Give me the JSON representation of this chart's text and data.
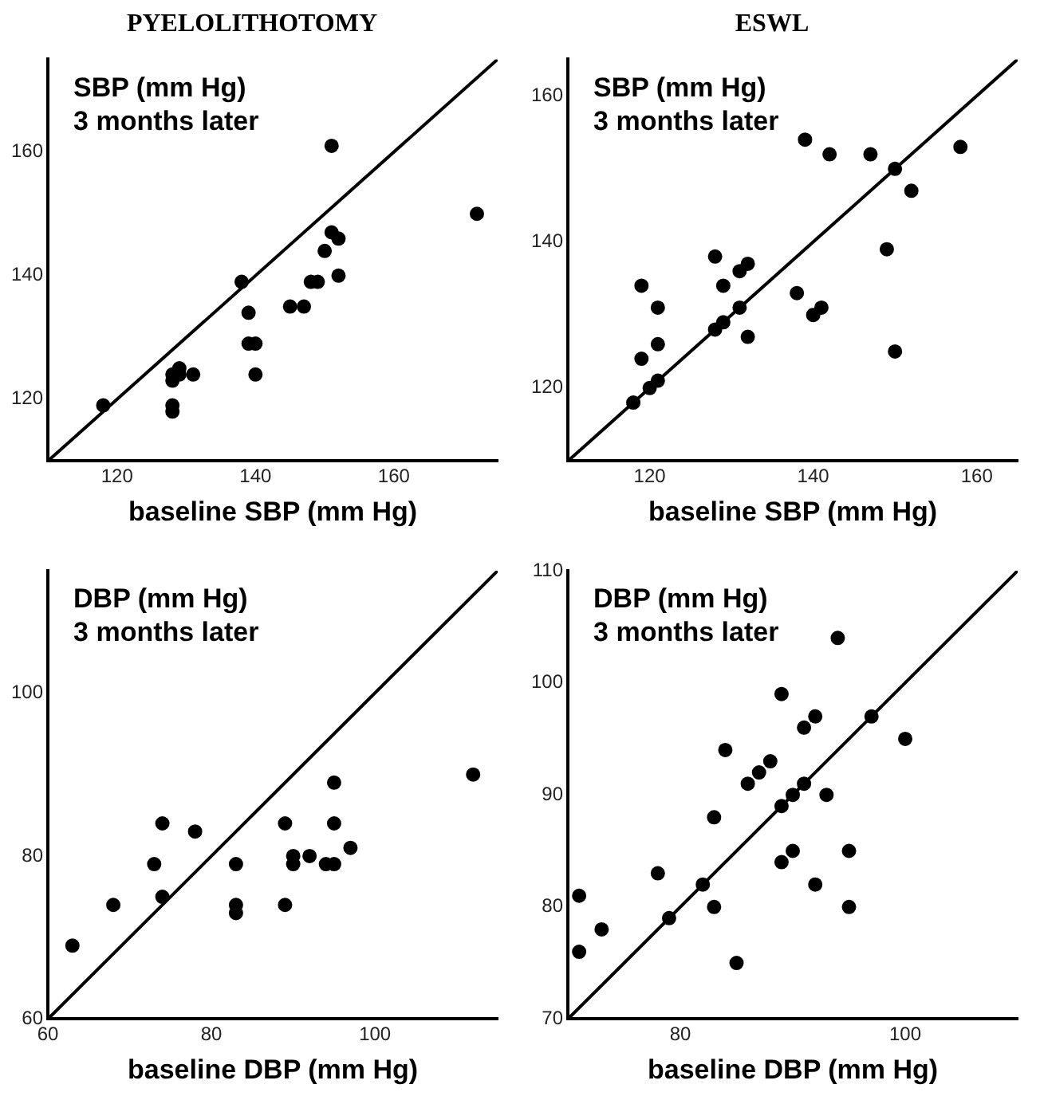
{
  "chart_data": [
    {
      "type": "scatter",
      "title": "PYELOLITHOTOMY",
      "xlabel": "baseline SBP (mm Hg)",
      "ylabel": "SBP (mm Hg)\n3 months later",
      "xlim": [
        110,
        175
      ],
      "ylim": [
        110,
        175
      ],
      "xticks": [
        120,
        140,
        160
      ],
      "yticks": [
        120,
        140,
        160
      ],
      "grid": false,
      "legend": false,
      "marker": "circle",
      "series": [
        {
          "type": "scatter",
          "color": "#000000",
          "x": [
            118,
            128,
            128,
            129,
            129,
            128,
            128,
            131,
            138,
            139,
            139,
            140,
            140,
            145,
            147,
            148,
            149,
            150,
            151,
            151,
            152,
            152,
            172
          ],
          "values": [
            119,
            124,
            123,
            125,
            124,
            119,
            118,
            124,
            139,
            134,
            129,
            129,
            124,
            135,
            135,
            139,
            139,
            144,
            161,
            147,
            146,
            140,
            150
          ]
        },
        {
          "type": "line",
          "color": "#000000",
          "marker": "none",
          "line_style": "solid",
          "x": [
            110,
            175
          ],
          "values": [
            110,
            175
          ]
        }
      ]
    },
    {
      "type": "scatter",
      "title": "ESWL",
      "xlabel": "baseline SBP (mm Hg)",
      "ylabel": "SBP (mm Hg)\n3 months later",
      "xlim": [
        110,
        165
      ],
      "ylim": [
        110,
        165
      ],
      "xticks": [
        120,
        140,
        160
      ],
      "yticks": [
        120,
        140,
        160
      ],
      "grid": false,
      "legend": false,
      "marker": "circle",
      "series": [
        {
          "type": "scatter",
          "color": "#000000",
          "x": [
            118,
            120,
            121,
            119,
            119,
            121,
            121,
            128,
            128,
            129,
            129,
            131,
            131,
            132,
            132,
            138,
            139,
            140,
            141,
            142,
            147,
            149,
            150,
            150,
            152,
            158
          ],
          "values": [
            118,
            120,
            121,
            124,
            134,
            126,
            131,
            128,
            138,
            129,
            134,
            136,
            131,
            137,
            127,
            133,
            154,
            130,
            131,
            152,
            152,
            139,
            150,
            125,
            147,
            153
          ]
        },
        {
          "type": "line",
          "color": "#000000",
          "marker": "none",
          "line_style": "solid",
          "x": [
            110,
            165
          ],
          "values": [
            110,
            165
          ]
        }
      ]
    },
    {
      "type": "scatter",
      "xlabel": "baseline DBP (mm Hg)",
      "ylabel": "DBP (mm Hg)\n3 months later",
      "xlim": [
        60,
        115
      ],
      "ylim": [
        60,
        115
      ],
      "xticks": [
        60,
        80,
        100
      ],
      "yticks": [
        60,
        80,
        100
      ],
      "grid": false,
      "legend": false,
      "marker": "circle",
      "series": [
        {
          "type": "scatter",
          "color": "#000000",
          "x": [
            63,
            68,
            73,
            74,
            74,
            78,
            83,
            83,
            83,
            89,
            89,
            90,
            90,
            92,
            94,
            95,
            95,
            95,
            97,
            112
          ],
          "values": [
            69,
            74,
            79,
            84,
            75,
            83,
            79,
            74,
            73,
            84,
            74,
            80,
            79,
            80,
            79,
            79,
            89,
            84,
            81,
            90
          ]
        },
        {
          "type": "line",
          "color": "#000000",
          "marker": "none",
          "line_style": "solid",
          "x": [
            60,
            115
          ],
          "values": [
            60,
            115
          ]
        }
      ]
    },
    {
      "type": "scatter",
      "xlabel": "baseline DBP (mm Hg)",
      "ylabel": "DBP (mm Hg)\n3 months later",
      "xlim": [
        70,
        110
      ],
      "ylim": [
        70,
        110
      ],
      "xticks": [
        80,
        100
      ],
      "yticks": [
        70,
        80,
        90,
        100,
        110
      ],
      "grid": false,
      "legend": false,
      "marker": "circle",
      "series": [
        {
          "type": "scatter",
          "color": "#000000",
          "x": [
            71,
            71,
            73,
            78,
            79,
            82,
            83,
            83,
            84,
            85,
            86,
            87,
            88,
            89,
            89,
            89,
            90,
            90,
            91,
            91,
            92,
            92,
            93,
            94,
            95,
            95,
            97,
            100
          ],
          "values": [
            81,
            76,
            78,
            83,
            79,
            82,
            88,
            80,
            94,
            75,
            91,
            92,
            93,
            99,
            89,
            84,
            90,
            85,
            96,
            91,
            97,
            82,
            90,
            104,
            85,
            80,
            97,
            95
          ]
        },
        {
          "type": "line",
          "color": "#000000",
          "marker": "none",
          "line_style": "solid",
          "x": [
            70,
            110
          ],
          "values": [
            70,
            110
          ]
        }
      ]
    }
  ]
}
